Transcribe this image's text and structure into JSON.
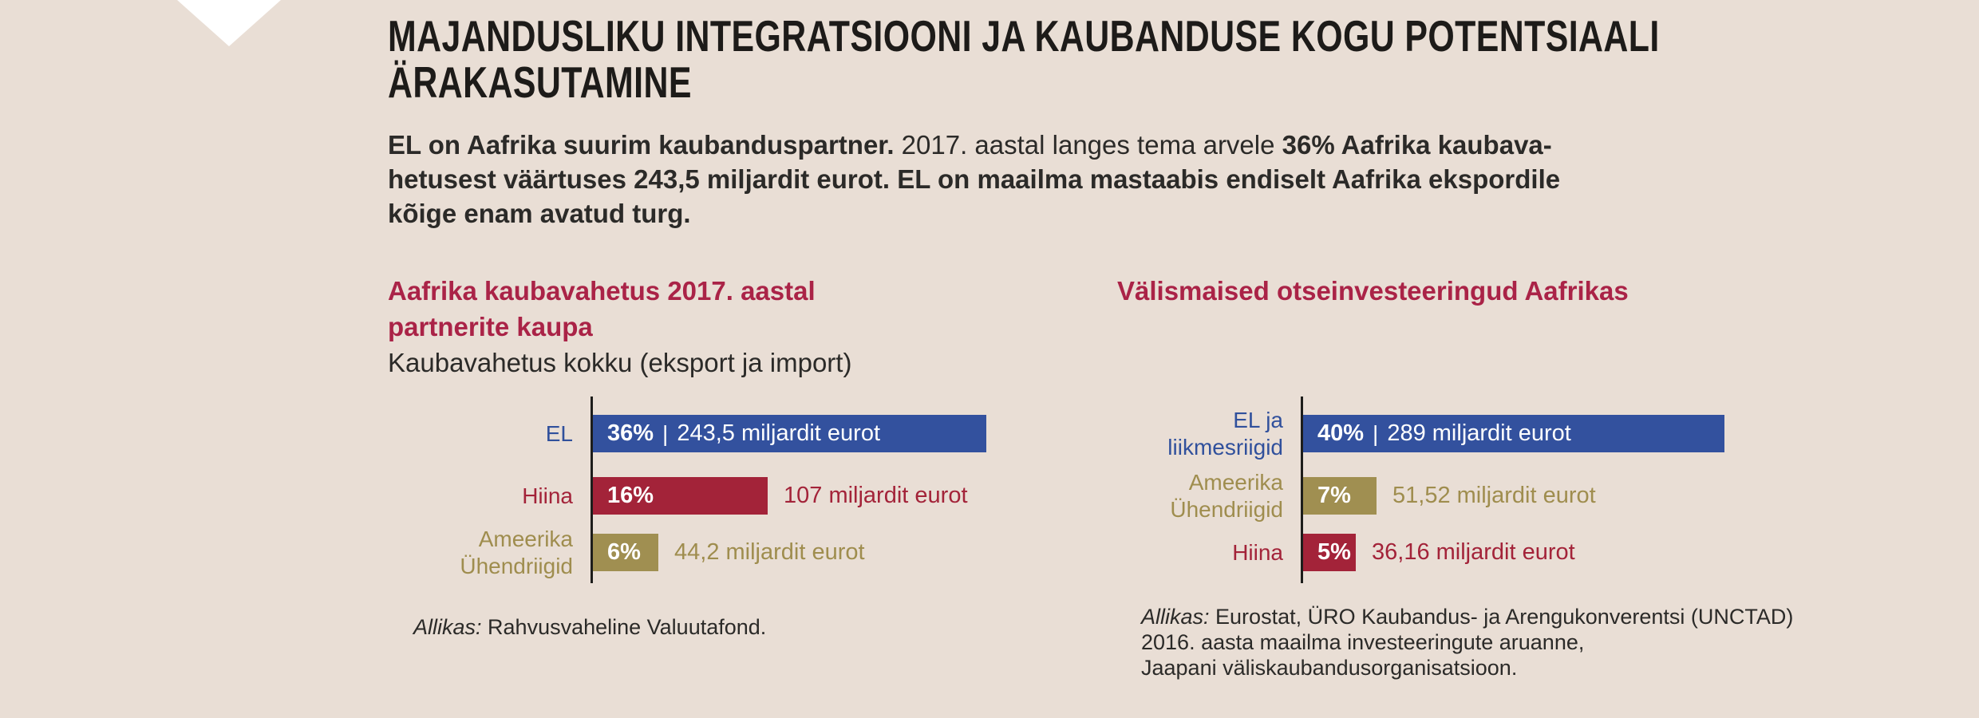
{
  "page": {
    "background": "#e9ded5"
  },
  "colors": {
    "blue": "#33519e",
    "crimson": "#a32339",
    "olive": "#a08f51",
    "heading_red": "#aa2347",
    "axis": "#1d1d1b",
    "text": "#2b2a28",
    "bar_text": "#ffffff",
    "background": "#e9ded5"
  },
  "title": {
    "lines": [
      "MAJANDUSLIKU INTEGRATSIOONI JA KAUBANDUSE KOGU POTENTSIAALI",
      "ÄRAKASUTAMINE"
    ]
  },
  "intro": {
    "line1_bold_start": "EL on Aafrika suurim kaubanduspartner.",
    "line1_regular": " 2017. aastal langes tema arvele ",
    "line1_bold_end": "36% Aafrika kaubava-",
    "line2": "hetusest väärtuses 243,5 miljardit eurot. EL on maailma mastaabis endiselt Aafrika ekspordile",
    "line3": "kõige enam avatud turg."
  },
  "strings": {
    "bar_separator": "|"
  },
  "chart_data": [
    {
      "type": "bar",
      "orientation": "horizontal",
      "title": "Aafrika kaubavahetus 2017. aastal partnerite kaupa",
      "title_lines": [
        "Aafrika kaubavahetus 2017. aastal",
        "partnerite kaupa"
      ],
      "subtitle": "Kaubavahetus kokku (eksport ja import)",
      "categories": [
        "EL",
        "Hiina",
        "Ameerika Ühendriigid"
      ],
      "values_percent": [
        36,
        16,
        6
      ],
      "value_labels": [
        "243,5 miljardit eurot",
        "107 miljardit eurot",
        "44,2 miljardit eurot"
      ],
      "xlim_percent": [
        0,
        42
      ],
      "legend": "none",
      "rows": [
        {
          "label": "EL",
          "percent": 36,
          "percent_label": "36%",
          "value_label": "243,5 miljardit eurot",
          "value_position": "inside",
          "color_key": "blue"
        },
        {
          "label": "Hiina",
          "percent": 16,
          "percent_label": "16%",
          "value_label": "107 miljardit eurot",
          "value_position": "outside",
          "color_key": "crimson"
        },
        {
          "label": "Ameerika\nÜhendriigid",
          "percent": 6,
          "percent_label": "6%",
          "value_label": "44,2 miljardit eurot",
          "value_position": "outside",
          "color_key": "olive"
        }
      ],
      "source": {
        "prefix_italic": "Allikas:",
        "line1_rest": " Rahvusvaheline Valuutafond."
      }
    },
    {
      "type": "bar",
      "orientation": "horizontal",
      "title": "Välismaised otseinvesteeringud Aafrikas",
      "title_lines": [
        "Välismaised otseinvesteeringud Aafrikas"
      ],
      "subtitle": "",
      "categories": [
        "EL ja liikmesriigid",
        "Ameerika Ühendriigid",
        "Hiina"
      ],
      "values_percent": [
        40,
        7,
        5
      ],
      "value_labels": [
        "289 miljardit eurot",
        "51,52 miljardit eurot",
        "36,16 miljardit eurot"
      ],
      "xlim_percent": [
        0,
        42
      ],
      "legend": "none",
      "rows": [
        {
          "label": "EL ja\nliikmesriigid",
          "percent": 40,
          "percent_label": "40%",
          "value_label": "289 miljardit eurot",
          "value_position": "inside",
          "color_key": "blue"
        },
        {
          "label": "Ameerika\nÜhendriigid",
          "percent": 7,
          "percent_label": "7%",
          "value_label": "51,52 miljardit eurot",
          "value_position": "outside",
          "color_key": "olive"
        },
        {
          "label": "Hiina",
          "percent": 5,
          "percent_label": "5%",
          "value_label": "36,16 miljardit eurot",
          "value_position": "outside",
          "color_key": "crimson"
        }
      ],
      "source": {
        "prefix_italic": "Allikas:",
        "line1_rest": " Eurostat, ÜRO Kaubandus- ja Arengukonverentsi (UNCTAD)",
        "line2": "2016. aasta maailma investeeringute aruanne,",
        "line3": "Jaapani väliskaubandusorganisatsioon."
      }
    }
  ]
}
